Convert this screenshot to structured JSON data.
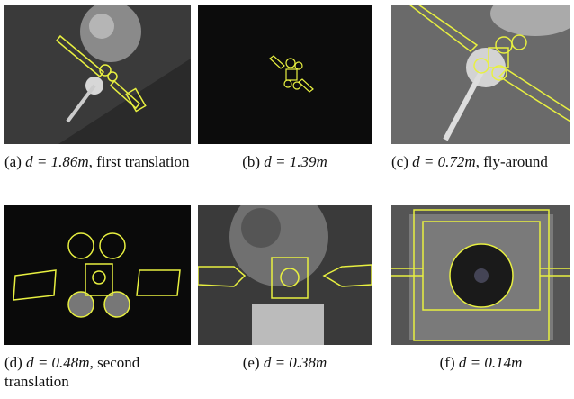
{
  "subfigures": [
    {
      "label": "(a)",
      "math": "d = 1.86m",
      "text": ", first translation"
    },
    {
      "label": "(b)",
      "math": "d = 1.39m"
    },
    {
      "label": "(c)",
      "math": "d = 0.72m",
      "text": ", fly-around"
    },
    {
      "label": "(d)",
      "math": "d = 0.48m",
      "text": ", second translation"
    },
    {
      "label": "(e)",
      "math": "d = 0.38m"
    },
    {
      "label": "(f)",
      "math": "d = 0.14m"
    }
  ]
}
